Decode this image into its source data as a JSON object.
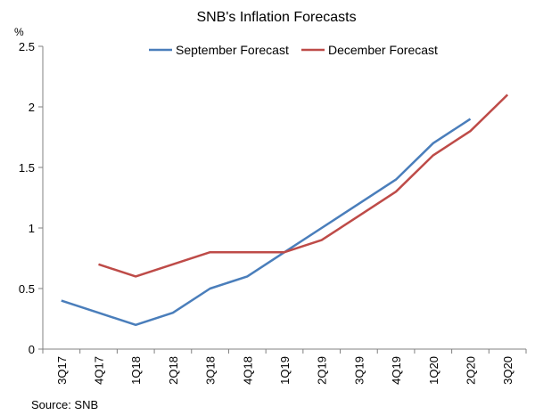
{
  "chart_data": {
    "type": "line",
    "title": "SNB's Inflation Forecasts",
    "ylabel_unit": "%",
    "xlabel": "",
    "categories": [
      "3Q17",
      "4Q17",
      "1Q18",
      "2Q18",
      "3Q18",
      "4Q18",
      "1Q19",
      "2Q19",
      "3Q19",
      "4Q19",
      "1Q20",
      "2Q20",
      "3Q20"
    ],
    "ylim": [
      0,
      2.5
    ],
    "yticks": [
      0,
      0.5,
      1,
      1.5,
      2,
      2.5
    ],
    "ytick_labels": [
      "0",
      "0.5",
      "1",
      "1.5",
      "2",
      "2.5"
    ],
    "grid": false,
    "legend_position": "top-center",
    "series": [
      {
        "name": "September Forecast",
        "color": "#4a7ebb",
        "values": [
          0.4,
          0.3,
          0.2,
          0.3,
          0.5,
          0.6,
          0.8,
          1.0,
          1.2,
          1.4,
          1.7,
          1.9,
          null
        ]
      },
      {
        "name": "December Forecast",
        "color": "#be4b48",
        "values": [
          null,
          0.7,
          0.6,
          0.7,
          0.8,
          0.8,
          0.8,
          0.9,
          1.1,
          1.3,
          1.6,
          1.8,
          2.1
        ]
      }
    ]
  },
  "source": "Source: SNB"
}
